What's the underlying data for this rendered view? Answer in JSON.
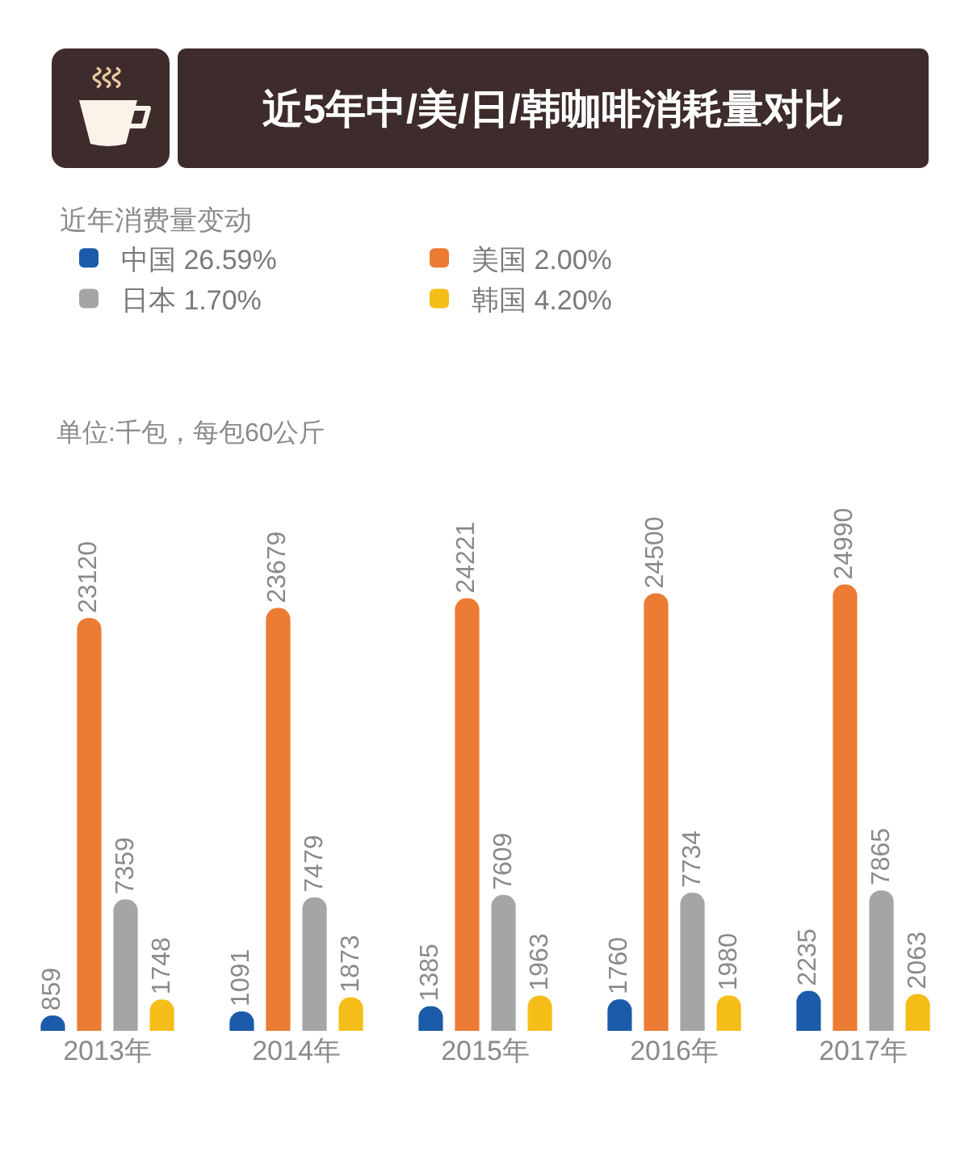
{
  "chart_data": {
    "type": "bar",
    "title": "近5年中/美/日/韩咖啡消耗量对比",
    "legend_title": "近年消费量变动",
    "annotations": [
      "单位:千包，每包60公斤"
    ],
    "categories": [
      "2013年",
      "2014年",
      "2015年",
      "2016年",
      "2017年"
    ],
    "series": [
      {
        "name": "中国 26.59%",
        "color": "#1b5ba9",
        "values": [
          859,
          1091,
          1385,
          1760,
          2235
        ]
      },
      {
        "name": "美国 2.00%",
        "color": "#ec7b33",
        "values": [
          23120,
          23679,
          24221,
          24500,
          24990
        ]
      },
      {
        "name": "日本 1.70%",
        "color": "#a5a5a7",
        "values": [
          7359,
          7479,
          7609,
          7734,
          7865
        ]
      },
      {
        "name": "韩国 4.20%",
        "color": "#f5bd18",
        "values": [
          1748,
          1873,
          1963,
          1980,
          2063
        ]
      }
    ],
    "data_labels": true,
    "legend": "top left"
  }
}
